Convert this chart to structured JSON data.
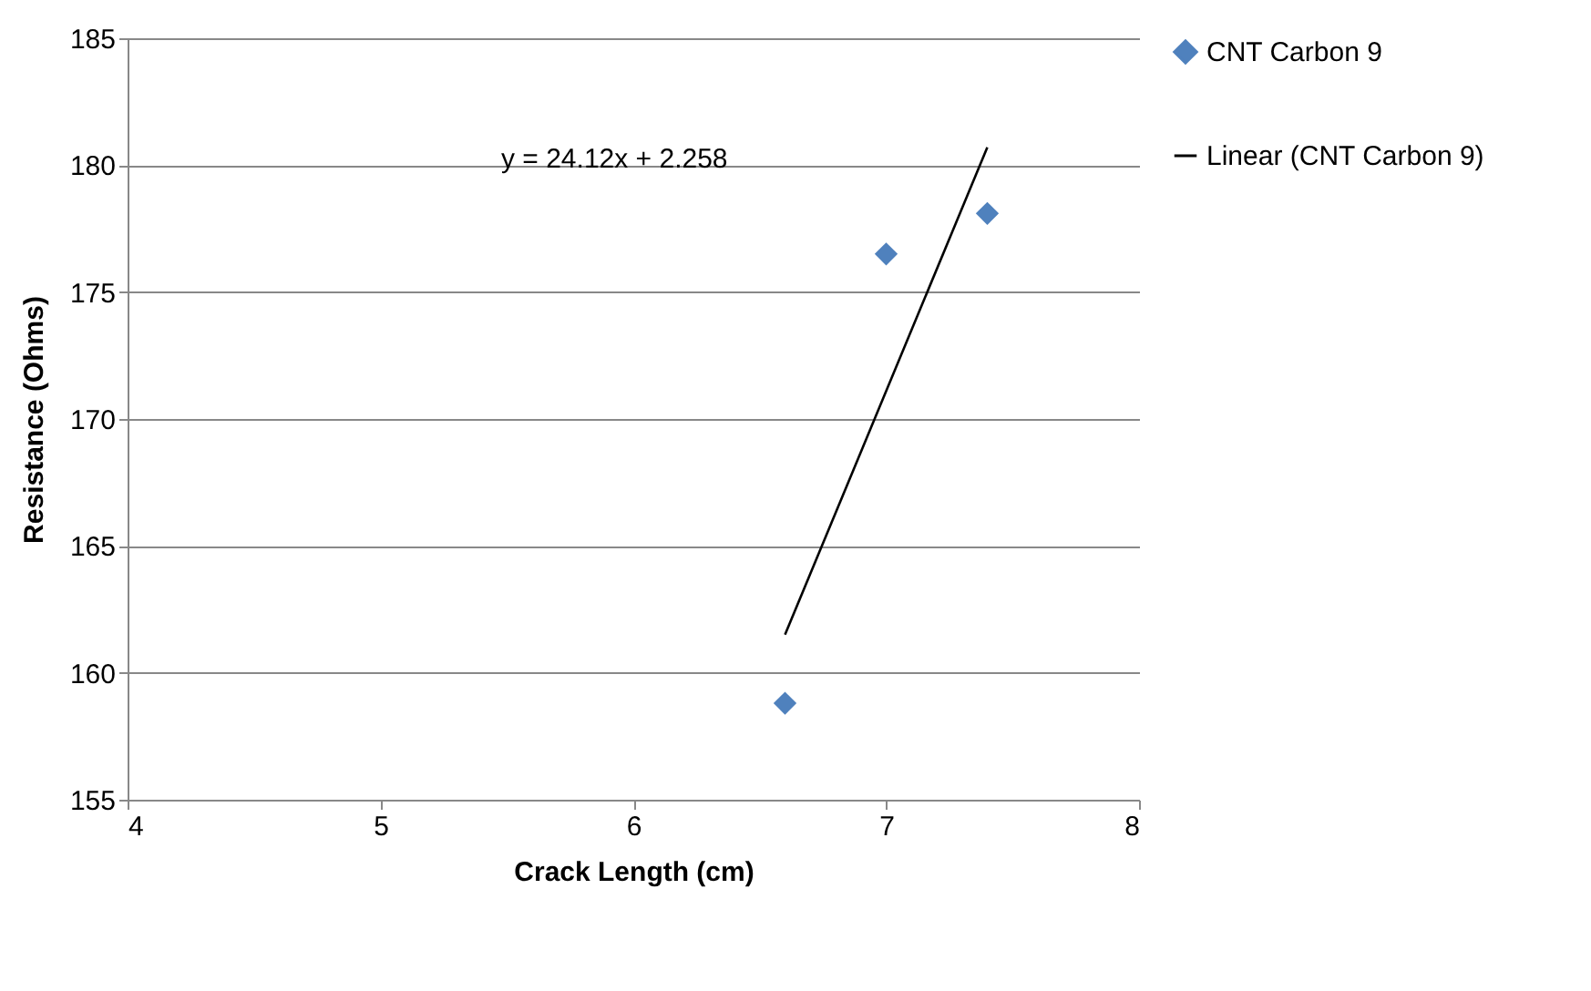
{
  "chart_data": {
    "type": "scatter",
    "xlabel": "Crack Length (cm)",
    "ylabel": "Resistance (Ohms)",
    "xlim": [
      4,
      8
    ],
    "xticks": [
      4,
      5,
      6,
      7,
      8
    ],
    "ylim": [
      155,
      185
    ],
    "yticks": [
      155,
      160,
      165,
      170,
      175,
      180,
      185
    ],
    "grid": "y",
    "legend": "right",
    "annotations": [
      "y = 24.12x + 2.258"
    ],
    "series": [
      {
        "name": "CNT Carbon 9",
        "color": "#4f81bd",
        "marker": "diamond",
        "x": [
          6.6,
          7.0,
          7.4
        ],
        "values": [
          158.8,
          176.5,
          178.1
        ]
      },
      {
        "name": "Linear (CNT Carbon 9)",
        "type": "line",
        "line_style": "solid",
        "color": "#000000",
        "x": [
          6.6,
          7.4
        ],
        "values": [
          161.5,
          180.7
        ]
      }
    ]
  }
}
